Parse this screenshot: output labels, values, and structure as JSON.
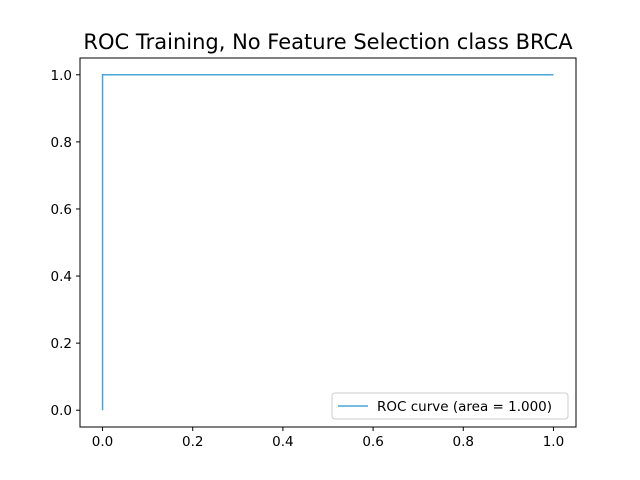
{
  "chart_data": {
    "type": "line",
    "title": "ROC Training, No Feature Selection class BRCA",
    "xlabel": "",
    "ylabel": "",
    "xlim": [
      -0.05,
      1.05
    ],
    "ylim": [
      -0.05,
      1.05
    ],
    "x_ticks": [
      0.0,
      0.2,
      0.4,
      0.6,
      0.8,
      1.0
    ],
    "x_tick_labels": [
      "0.0",
      "0.2",
      "0.4",
      "0.6",
      "0.8",
      "1.0"
    ],
    "y_ticks": [
      0.0,
      0.2,
      0.4,
      0.6,
      0.8,
      1.0
    ],
    "y_tick_labels": [
      "0.0",
      "0.2",
      "0.4",
      "0.6",
      "0.8",
      "1.0"
    ],
    "grid": false,
    "legend_position": "lower right",
    "series": [
      {
        "name": "ROC curve (area = 1.000)",
        "color": "#4aa5d4",
        "x": [
          0.0,
          0.0,
          1.0
        ],
        "y": [
          0.0,
          1.0,
          1.0
        ]
      }
    ]
  }
}
